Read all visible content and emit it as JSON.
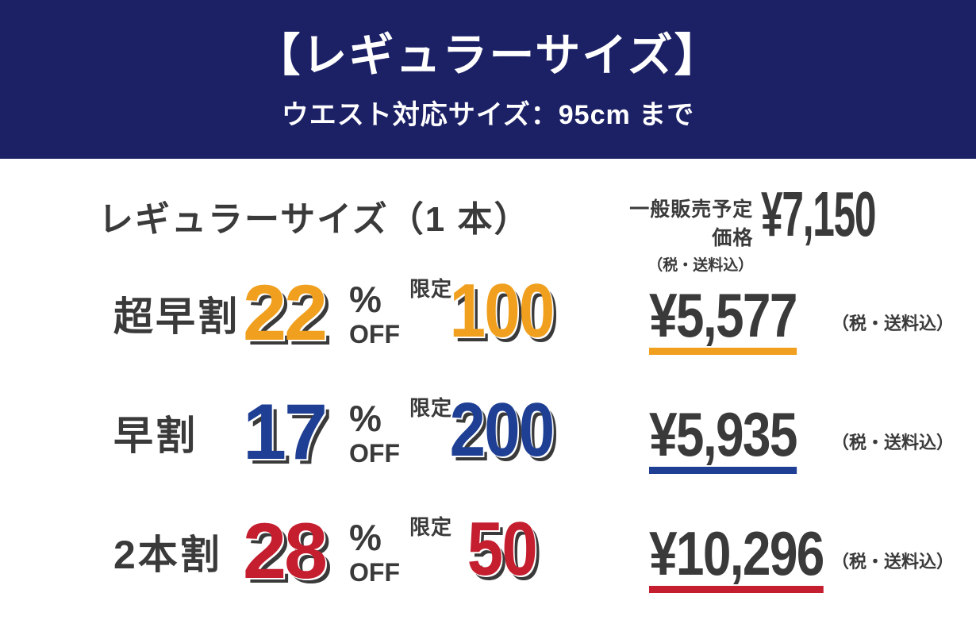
{
  "header": {
    "title": "【レギュラーサイズ】",
    "subtitle": "ウエスト対応サイズ：95cm まで"
  },
  "product": {
    "name": "レギュラーサイズ（1 本）",
    "list_price_label": "一般販売予定価格",
    "list_price_tax_note": "（税・送料込）",
    "list_price": "¥7,150"
  },
  "offers": [
    {
      "label": "超早割",
      "percent": "22",
      "percent_sign": "%",
      "off_text": "OFF",
      "limited_label": "限定",
      "limited_count": "100",
      "price": "¥5,577",
      "tax_note": "（税・送料込）",
      "accent_color": "#f0a01e"
    },
    {
      "label": "早割",
      "percent": "17",
      "percent_sign": "%",
      "off_text": "OFF",
      "limited_label": "限定",
      "limited_count": "200",
      "price": "¥5,935",
      "tax_note": "（税・送料込）",
      "accent_color": "#1e3f94"
    },
    {
      "label": "2本割",
      "percent": "28",
      "percent_sign": "%",
      "off_text": "OFF",
      "limited_label": "限定",
      "limited_count": "50",
      "price": "¥10,296",
      "tax_note": "（税・送料込）",
      "accent_color": "#c41e2f"
    }
  ],
  "colors": {
    "navy": "#1c2166",
    "text": "#3a3a3a",
    "orange": "#f0a01e",
    "blue": "#1e3f94",
    "red": "#c41e2f",
    "background": "#ffffff"
  }
}
